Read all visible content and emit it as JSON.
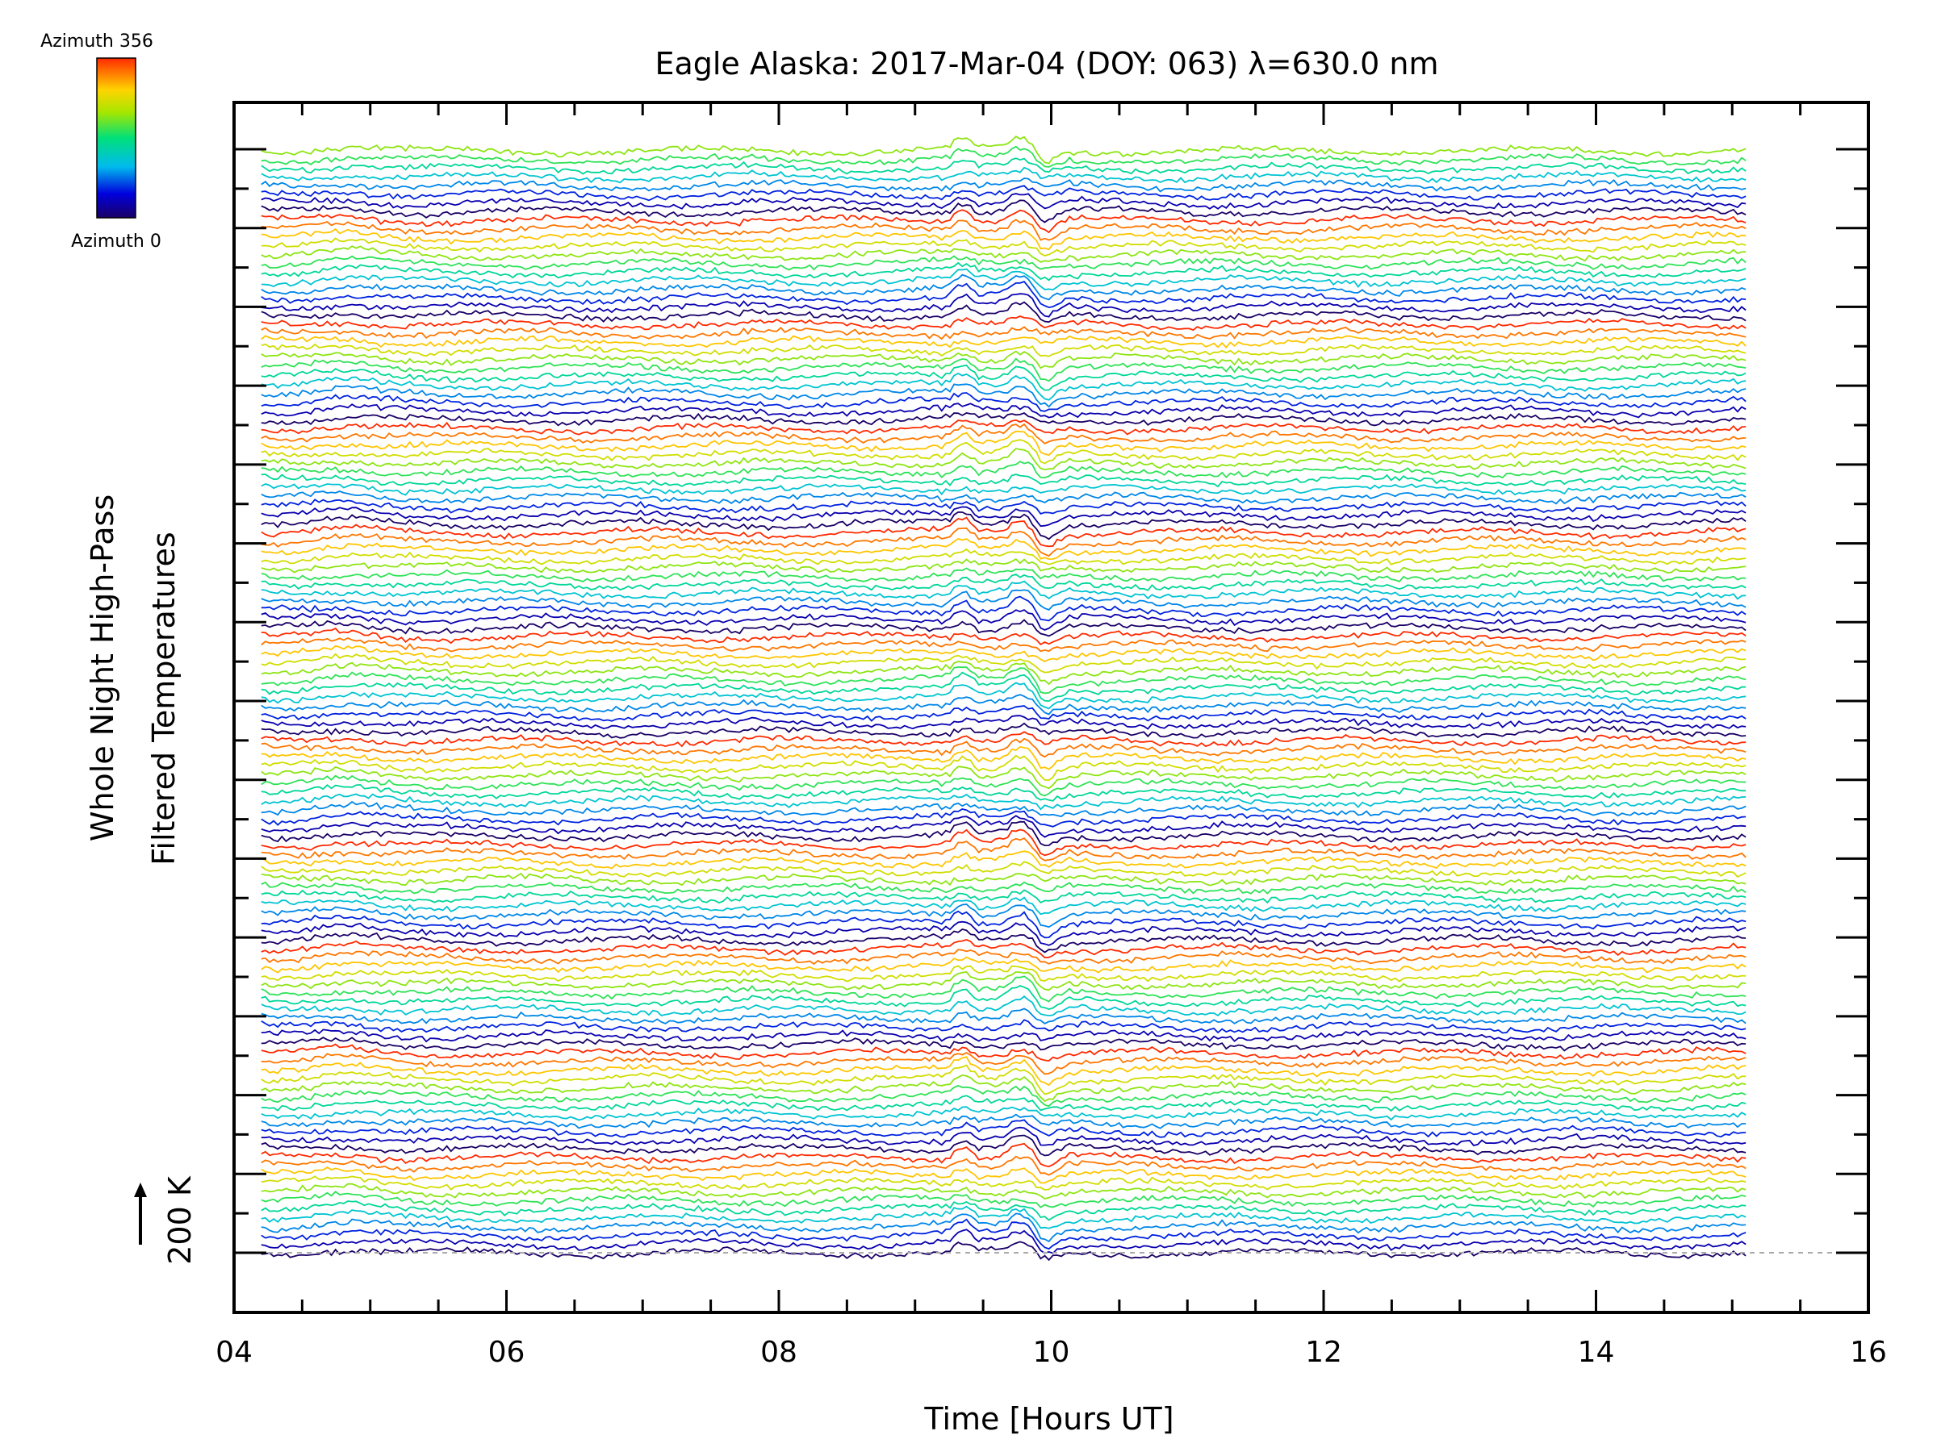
{
  "chart_data": {
    "type": "line",
    "title": "Eagle Alaska: 2017-Mar-04 (DOY: 063) λ=630.0 nm",
    "xlabel": "Time [Hours UT]",
    "ylabel_line1": "Whole Night High-Pass",
    "ylabel_line2": "Filtered Temperatures",
    "scale_label": "200 K",
    "xlim": [
      4,
      16
    ],
    "x_ticks": [
      "04",
      "06",
      "08",
      "10",
      "12",
      "14",
      "16"
    ],
    "x_tick_values": [
      4,
      6,
      8,
      10,
      12,
      14,
      16
    ],
    "data_time_range": [
      4.2,
      15.1
    ],
    "y_axis_tick_labels": false,
    "traces": 128,
    "azimuths_per_sequence": 12,
    "colorbar": {
      "top_label": "Azimuth 356",
      "bottom_label": "Azimuth 0",
      "azimuth_range": [
        0,
        356
      ],
      "colormap": "rainbow"
    },
    "features": [
      {
        "time": 9.35,
        "description": "dip"
      },
      {
        "time": 9.8,
        "description": "wave disturbance"
      },
      {
        "time": 9.9,
        "description": "minimum"
      }
    ],
    "colors": {
      "background": "#ffffff",
      "axes": "#000000",
      "baseline": "#aaaaaa"
    }
  }
}
